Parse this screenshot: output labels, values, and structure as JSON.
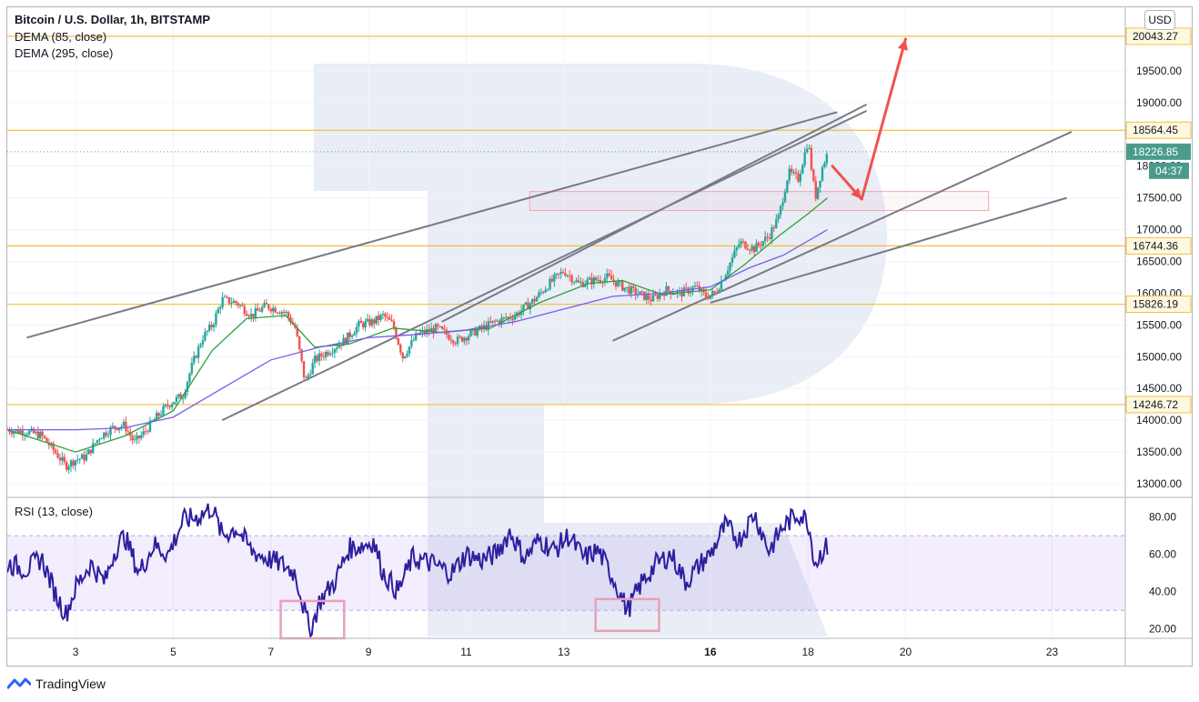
{
  "chart_data": {
    "type": "candlestick",
    "title": "Bitcoin / U.S. Dollar, 1h, BITSTAMP",
    "currency": "USD",
    "countdown": "04:37",
    "indicators": [
      "DEMA (85, close)",
      "DEMA (295, close)"
    ],
    "price_axis": {
      "ticks": [
        13000,
        13500,
        14000,
        14500,
        15000,
        15500,
        16000,
        16500,
        17000,
        17500,
        18000,
        18500,
        19000,
        19500,
        20000
      ],
      "tick_labels": [
        "13000.00",
        "13500.00",
        "14000.00",
        "14500.00",
        "15000.00",
        "15500.00",
        "16000.00",
        "16500.00",
        "17000.00",
        "17500.00",
        "18000.00",
        "18500.00",
        "19000.00",
        "19500.00",
        "20000.00"
      ],
      "range": [
        12800,
        20500
      ]
    },
    "time_axis": {
      "ticks": [
        3,
        5,
        7,
        9,
        11,
        13,
        16,
        18,
        20,
        23
      ],
      "tick_labels": [
        "3",
        "5",
        "7",
        "9",
        "11",
        "13",
        "16",
        "18",
        "20",
        "23"
      ],
      "bold": [
        "16"
      ],
      "range_days": [
        1.6,
        24.5
      ]
    },
    "horizontal_levels": [
      {
        "value": 20043.27,
        "label": "20043.27"
      },
      {
        "value": 18564.45,
        "label": "18564.45"
      },
      {
        "value": 16744.36,
        "label": "16744.36"
      },
      {
        "value": 15826.19,
        "label": "15826.19"
      },
      {
        "value": 14246.72,
        "label": "14246.72"
      }
    ],
    "last_price": {
      "value": 18226.85,
      "label": "18226.85"
    },
    "price_path": [
      [
        1.6,
        13850
      ],
      [
        2.0,
        13820
      ],
      [
        2.3,
        13760
      ],
      [
        2.6,
        13480
      ],
      [
        2.8,
        13280
      ],
      [
        3.0,
        13380
      ],
      [
        3.2,
        13420
      ],
      [
        3.5,
        13750
      ],
      [
        3.8,
        13900
      ],
      [
        4.0,
        13920
      ],
      [
        4.2,
        13650
      ],
      [
        4.4,
        13800
      ],
      [
        4.6,
        14000
      ],
      [
        4.9,
        14250
      ],
      [
        5.2,
        14400
      ],
      [
        5.4,
        14900
      ],
      [
        5.6,
        15300
      ],
      [
        5.8,
        15500
      ],
      [
        6.0,
        15900
      ],
      [
        6.3,
        15850
      ],
      [
        6.6,
        15650
      ],
      [
        6.9,
        15800
      ],
      [
        7.1,
        15750
      ],
      [
        7.3,
        15700
      ],
      [
        7.5,
        15450
      ],
      [
        7.7,
        14600
      ],
      [
        7.9,
        14950
      ],
      [
        8.2,
        15100
      ],
      [
        8.5,
        15250
      ],
      [
        8.8,
        15500
      ],
      [
        9.1,
        15550
      ],
      [
        9.3,
        15650
      ],
      [
        9.5,
        15500
      ],
      [
        9.7,
        15000
      ],
      [
        10.0,
        15350
      ],
      [
        10.4,
        15450
      ],
      [
        10.8,
        15250
      ],
      [
        11.2,
        15400
      ],
      [
        11.6,
        15550
      ],
      [
        12.0,
        15650
      ],
      [
        12.4,
        15900
      ],
      [
        12.7,
        16150
      ],
      [
        13.0,
        16350
      ],
      [
        13.3,
        16150
      ],
      [
        13.6,
        16200
      ],
      [
        13.9,
        16250
      ],
      [
        14.2,
        16100
      ],
      [
        14.5,
        16000
      ],
      [
        14.8,
        15900
      ],
      [
        15.1,
        16050
      ],
      [
        15.4,
        16000
      ],
      [
        15.7,
        16100
      ],
      [
        15.9,
        15950
      ],
      [
        16.1,
        16000
      ],
      [
        16.3,
        16300
      ],
      [
        16.6,
        16800
      ],
      [
        16.9,
        16700
      ],
      [
        17.2,
        16900
      ],
      [
        17.4,
        17200
      ],
      [
        17.6,
        17900
      ],
      [
        17.8,
        17800
      ],
      [
        18.0,
        18400
      ],
      [
        18.15,
        17500
      ],
      [
        18.3,
        18000
      ],
      [
        18.4,
        18200
      ]
    ],
    "dema_85": [
      [
        1.6,
        13850
      ],
      [
        3.0,
        13500
      ],
      [
        4.0,
        13750
      ],
      [
        5.0,
        14150
      ],
      [
        5.8,
        15100
      ],
      [
        6.5,
        15600
      ],
      [
        7.3,
        15650
      ],
      [
        7.9,
        15150
      ],
      [
        8.6,
        15200
      ],
      [
        9.5,
        15450
      ],
      [
        10.5,
        15380
      ],
      [
        11.5,
        15450
      ],
      [
        12.5,
        15850
      ],
      [
        13.5,
        16150
      ],
      [
        14.2,
        16200
      ],
      [
        15.0,
        15980
      ],
      [
        16.0,
        16050
      ],
      [
        16.7,
        16450
      ],
      [
        17.4,
        16900
      ],
      [
        18.0,
        17250
      ],
      [
        18.4,
        17500
      ]
    ],
    "dema_295": [
      [
        1.6,
        13850
      ],
      [
        3.0,
        13850
      ],
      [
        4.0,
        13880
      ],
      [
        5.0,
        14050
      ],
      [
        6.0,
        14500
      ],
      [
        7.0,
        14950
      ],
      [
        8.0,
        15150
      ],
      [
        9.0,
        15300
      ],
      [
        10.0,
        15350
      ],
      [
        11.0,
        15420
      ],
      [
        12.0,
        15550
      ],
      [
        13.0,
        15750
      ],
      [
        14.0,
        15950
      ],
      [
        15.0,
        16000
      ],
      [
        16.0,
        16100
      ],
      [
        16.8,
        16400
      ],
      [
        17.5,
        16600
      ],
      [
        18.4,
        17000
      ]
    ],
    "trend_lines": [
      {
        "from": [
          2.0,
          15300
        ],
        "to": [
          18.6,
          18850
        ]
      },
      {
        "from": [
          6.0,
          14000
        ],
        "to": [
          19.2,
          18870
        ]
      },
      {
        "from": [
          10.5,
          15550
        ],
        "to": [
          19.2,
          18970
        ]
      },
      {
        "from": [
          14.0,
          15250
        ],
        "to": [
          23.4,
          18540
        ]
      },
      {
        "from": [
          16.0,
          15850
        ],
        "to": [
          23.3,
          17500
        ]
      }
    ],
    "rect_zone": {
      "x": [
        12.3,
        21.7
      ],
      "y": [
        17300,
        17600
      ]
    },
    "arrows": [
      {
        "from": [
          18.5,
          18000
        ],
        "to": [
          19.1,
          17480
        ]
      },
      {
        "from": [
          19.1,
          17480
        ],
        "to": [
          20.0,
          20000
        ]
      }
    ],
    "rsi": {
      "label": "RSI (13, close)",
      "ticks": [
        20,
        40,
        60,
        80
      ],
      "tick_labels": [
        "20.00",
        "40.00",
        "60.00",
        "80.00"
      ],
      "band": [
        30,
        70
      ],
      "range": [
        15,
        90
      ],
      "highlight_zones": [
        {
          "x": [
            7.2,
            8.5
          ],
          "y": [
            15,
            35
          ]
        },
        {
          "x": [
            13.65,
            14.95
          ],
          "y": [
            19,
            36
          ]
        }
      ],
      "path": [
        [
          1.6,
          55
        ],
        [
          2.0,
          52
        ],
        [
          2.3,
          58
        ],
        [
          2.6,
          38
        ],
        [
          2.8,
          28
        ],
        [
          3.0,
          42
        ],
        [
          3.3,
          55
        ],
        [
          3.6,
          45
        ],
        [
          3.8,
          62
        ],
        [
          4.0,
          70
        ],
        [
          4.3,
          50
        ],
        [
          4.6,
          65
        ],
        [
          4.9,
          60
        ],
        [
          5.2,
          78
        ],
        [
          5.5,
          80
        ],
        [
          5.8,
          85
        ],
        [
          6.0,
          70
        ],
        [
          6.3,
          74
        ],
        [
          6.6,
          62
        ],
        [
          6.9,
          58
        ],
        [
          7.2,
          55
        ],
        [
          7.5,
          50
        ],
        [
          7.8,
          18
        ],
        [
          8.0,
          35
        ],
        [
          8.3,
          45
        ],
        [
          8.6,
          63
        ],
        [
          8.9,
          65
        ],
        [
          9.1,
          67
        ],
        [
          9.3,
          50
        ],
        [
          9.6,
          40
        ],
        [
          9.9,
          58
        ],
        [
          10.3,
          55
        ],
        [
          10.7,
          50
        ],
        [
          11.0,
          60
        ],
        [
          11.3,
          57
        ],
        [
          11.6,
          60
        ],
        [
          11.9,
          72
        ],
        [
          12.2,
          58
        ],
        [
          12.5,
          68
        ],
        [
          12.8,
          62
        ],
        [
          13.1,
          70
        ],
        [
          13.4,
          58
        ],
        [
          13.7,
          62
        ],
        [
          14.0,
          48
        ],
        [
          14.3,
          30
        ],
        [
          14.6,
          45
        ],
        [
          14.9,
          55
        ],
        [
          15.2,
          60
        ],
        [
          15.5,
          45
        ],
        [
          15.8,
          55
        ],
        [
          16.0,
          60
        ],
        [
          16.3,
          75
        ],
        [
          16.6,
          68
        ],
        [
          16.9,
          82
        ],
        [
          17.2,
          62
        ],
        [
          17.5,
          75
        ],
        [
          17.8,
          82
        ],
        [
          18.0,
          78
        ],
        [
          18.15,
          55
        ],
        [
          18.3,
          62
        ],
        [
          18.4,
          64
        ]
      ]
    }
  },
  "watermark": "tradingview-logo",
  "footer": {
    "brand": "TradingView"
  }
}
